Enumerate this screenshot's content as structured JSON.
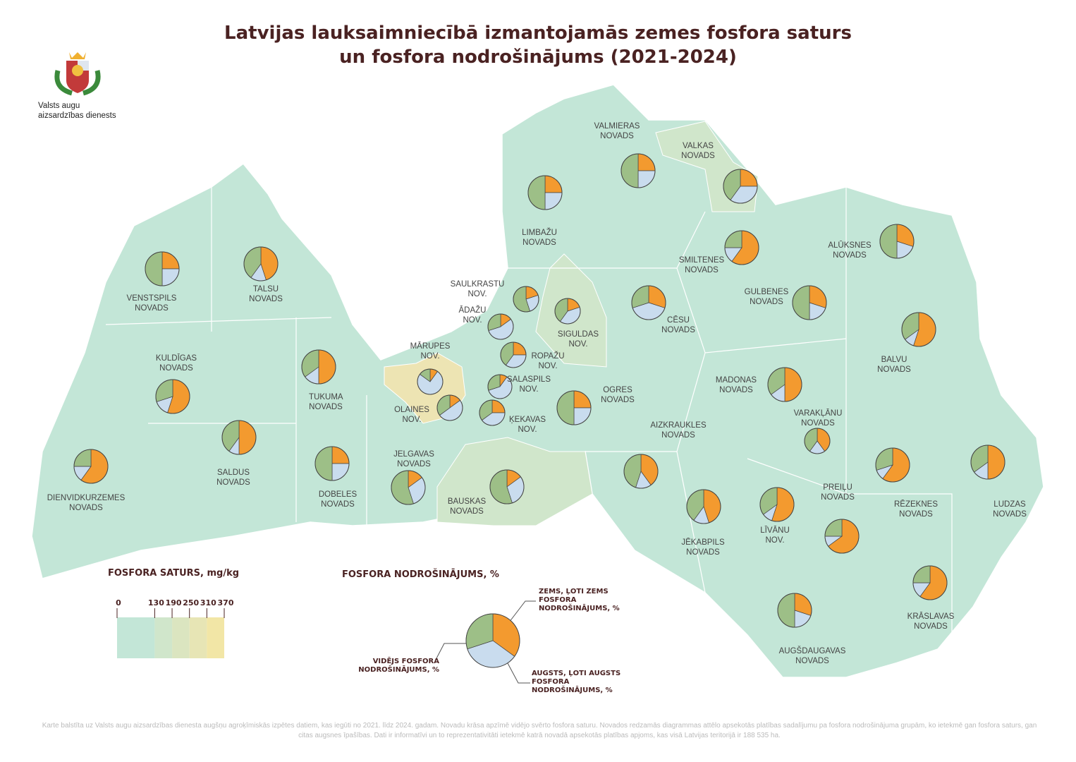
{
  "header": {
    "title_lines": [
      "Latvijas lauksaimniecībā izmantojamās zemes fosfora saturs",
      "un fosfora nodrošinājums (2021-2024)"
    ],
    "logo_lines": [
      "Valsts augu",
      "aizsardzības dienests"
    ]
  },
  "content_legend": {
    "title": "FOSFORA SATURS, mg/kg",
    "ticks": [
      0,
      130,
      190,
      250,
      310,
      370
    ],
    "colors": [
      "#c3e6d7",
      "#d0e6cb",
      "#dbe5c0",
      "#e7e5b5",
      "#f2e6a6"
    ]
  },
  "provision_legend": {
    "title": "FOSFORA NODROŠINĀJUMS, %",
    "items": [
      {
        "label": "ZEMS, ĻOTI ZEMS FOSFORA NODROŠINĀJUMS, %",
        "color": "#f39a2f"
      },
      {
        "label": "AUGSTS, ĻOTI AUGSTS FOSFORA NODROŠINĀJUMS, %",
        "color": "#c9dcee"
      },
      {
        "label": "VIDĒJS FOSFORA NODROŠINĀJUMS, %",
        "color": "#9dbf87"
      }
    ]
  },
  "regions": [
    {
      "name": "VALMIERAS NOVADS",
      "shares": [
        25,
        25,
        50
      ]
    },
    {
      "name": "VALKAS NOVADS",
      "shares": [
        25,
        35,
        40
      ]
    },
    {
      "name": "LIMBAŽU NOVADS",
      "shares": [
        25,
        25,
        50
      ]
    },
    {
      "name": "SMILTENES NOVADS",
      "shares": [
        60,
        15,
        25
      ]
    },
    {
      "name": "ALŪKSNES NOVADS",
      "shares": [
        30,
        20,
        50
      ]
    },
    {
      "name": "VENSTSPILS NOVADS",
      "shares": [
        25,
        25,
        50
      ]
    },
    {
      "name": "TALSU NOVADS",
      "shares": [
        45,
        15,
        40
      ]
    },
    {
      "name": "SAULKRASTU NOV.",
      "shares": [
        20,
        25,
        55
      ]
    },
    {
      "name": "ĀDAŽU NOV.",
      "shares": [
        15,
        55,
        30
      ]
    },
    {
      "name": "SIGULDAS NOV.",
      "shares": [
        20,
        40,
        40
      ]
    },
    {
      "name": "CĒSU NOVADS",
      "shares": [
        30,
        40,
        30
      ]
    },
    {
      "name": "GULBENES NOVADS",
      "shares": [
        30,
        20,
        50
      ]
    },
    {
      "name": "BALVU NOVADS",
      "shares": [
        55,
        10,
        35
      ]
    },
    {
      "name": "MĀRUPES NOV.",
      "shares": [
        10,
        75,
        15
      ]
    },
    {
      "name": "ROPAŽU NOV.",
      "shares": [
        25,
        35,
        40
      ]
    },
    {
      "name": "SALASPILS NOV.",
      "shares": [
        10,
        60,
        30
      ]
    },
    {
      "name": "KULDĪGAS NOVADS",
      "shares": [
        55,
        15,
        30
      ]
    },
    {
      "name": "TUKUMA NOVADS",
      "shares": [
        50,
        15,
        35
      ]
    },
    {
      "name": "OLAINES NOV.",
      "shares": [
        15,
        50,
        35
      ]
    },
    {
      "name": "ĶEKAVAS NOV.",
      "shares": [
        25,
        40,
        35
      ]
    },
    {
      "name": "OGRES NOVADS",
      "shares": [
        25,
        25,
        50
      ]
    },
    {
      "name": "MADONAS NOVADS",
      "shares": [
        50,
        15,
        35
      ]
    },
    {
      "name": "VARAKĻĀNU NOVADS",
      "shares": [
        40,
        20,
        40
      ]
    },
    {
      "name": "AIZKRAUKLES NOVADS",
      "shares": [
        40,
        15,
        45
      ]
    },
    {
      "name": "SALDUS NOVADS",
      "shares": [
        50,
        10,
        40
      ]
    },
    {
      "name": "DOBELES NOVADS",
      "shares": [
        25,
        25,
        50
      ]
    },
    {
      "name": "JELGAVAS NOVADS",
      "shares": [
        15,
        30,
        55
      ]
    },
    {
      "name": "BAUSKAS NOVADS",
      "shares": [
        15,
        30,
        55
      ]
    },
    {
      "name": "DIENVIDKURZEMES NOVADS",
      "shares": [
        60,
        15,
        25
      ]
    },
    {
      "name": "JĒKABPILS NOVADS",
      "shares": [
        45,
        15,
        40
      ]
    },
    {
      "name": "PREIĻU NOVADS",
      "shares": [
        65,
        10,
        25
      ]
    },
    {
      "name": "LĪVĀNU NOV.",
      "shares": [
        55,
        10,
        35
      ]
    },
    {
      "name": "RĒZEKNES NOVADS",
      "shares": [
        60,
        10,
        30
      ]
    },
    {
      "name": "LUDZAS NOVADS",
      "shares": [
        50,
        15,
        35
      ]
    },
    {
      "name": "KRĀSLAVAS NOVADS",
      "shares": [
        60,
        15,
        25
      ]
    },
    {
      "name": "AUGŠDAUGAVAS NOVADS",
      "shares": [
        30,
        20,
        50
      ]
    }
  ],
  "legend_example_shares": [
    35,
    35,
    30
  ],
  "footnote": "Karte balstīta uz Valsts augu aizsardzības dienesta augšņu agroķīmiskās izpētes datiem, kas iegūti no 2021. līdz 2024. gadam. Novadu krāsa apzīmē vidējo svērto fosfora saturu. Novados redzamās diagrammas attēlo apsekotās platības sadalījumu pa fosfora nodrošinājuma grupām, ko ietekmē gan fosfora saturs, gan citas augsnes īpašības. Dati ir informatīvi un to reprezentativitāti ietekmē katrā novadā apsekotās platības apjoms, kas visā Latvijas teritorijā ir 188 535 ha."
}
